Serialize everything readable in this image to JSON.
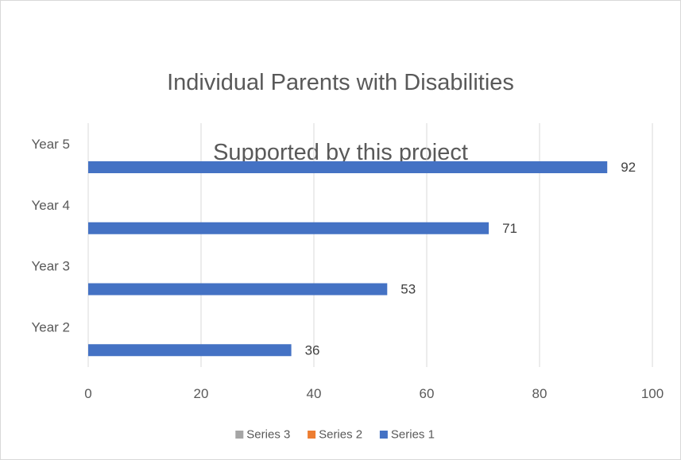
{
  "chart_data": {
    "type": "bar",
    "orientation": "horizontal",
    "title_line1": "Individual Parents with Disabilities",
    "title_line2": "Supported by this project",
    "categories": [
      "Year 2",
      "Year 3",
      "Year 4",
      "Year 5"
    ],
    "series": [
      {
        "name": "Series 1",
        "color": "#4472c4",
        "values": [
          36,
          53,
          71,
          92
        ]
      },
      {
        "name": "Series 2",
        "color": "#ed7d31",
        "values": [
          null,
          null,
          null,
          null
        ]
      },
      {
        "name": "Series 3",
        "color": "#a5a5a5",
        "values": [
          null,
          null,
          null,
          null
        ]
      }
    ],
    "x_ticks": [
      0,
      20,
      40,
      60,
      80,
      100
    ],
    "xlim": [
      0,
      100
    ],
    "grid": true,
    "legend_position": "bottom",
    "legend_order": [
      "Series 3",
      "Series 2",
      "Series 1"
    ],
    "data_labels": true
  }
}
